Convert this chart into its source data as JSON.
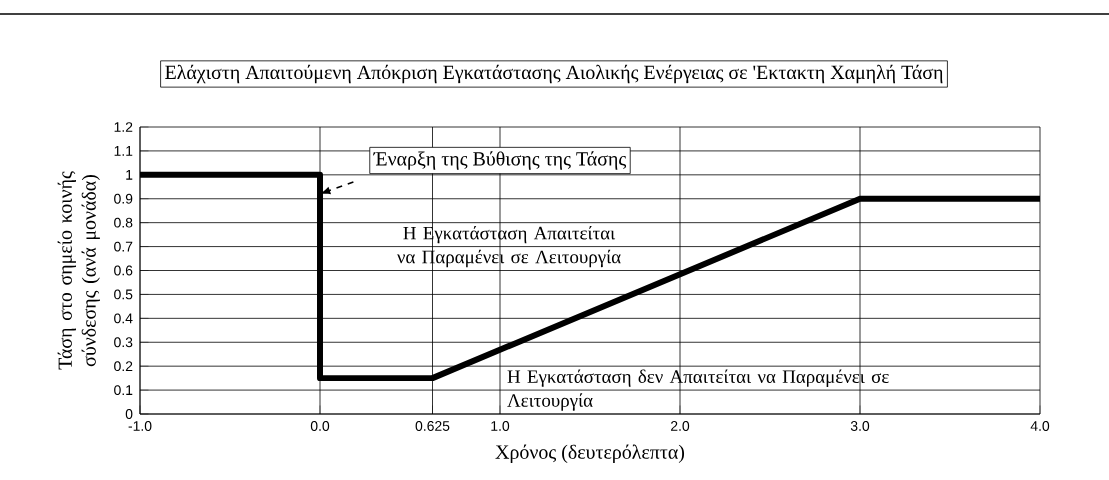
{
  "chart_data": {
    "type": "line",
    "title": "Ελάχιστη Απαιτούμενη Απόκριση Εγκατάστασης Αιολικής Ενέργειας σε 'Εκτακτη Χαμηλή Τάση",
    "xlabel": "Χρόνος (δευτερόλεπτα)",
    "ylabel": "Τάση στο σημείο κοινής σύνδεσης (ανά μονάδα)",
    "x": [
      -1,
      0,
      0,
      0.625,
      3,
      4
    ],
    "series": [
      {
        "color": "#000000",
        "values": [
          1,
          1,
          0.15,
          0.15,
          0.9,
          0.9
        ]
      }
    ],
    "xlim": [
      -1,
      4
    ],
    "ylim": [
      0,
      1.2
    ],
    "xticks": [
      {
        "value": -1,
        "label": "-1.0"
      },
      {
        "value": 0,
        "label": "0.0"
      },
      0.625,
      {
        "value": 1,
        "label": "1.0"
      },
      {
        "value": 2,
        "label": "2.0"
      },
      {
        "value": 3,
        "label": "3.0"
      },
      {
        "value": 4,
        "label": "4.0"
      }
    ],
    "yticks": [
      0,
      0.1,
      0.2,
      0.3,
      0.4,
      0.5,
      0.6,
      0.7,
      0.8,
      0.9,
      1,
      1.1,
      1.2
    ],
    "grid": true,
    "marker": "none",
    "line_style": "solid",
    "annotations": [
      {
        "text": "Έναρξη της Βύθισης της Τάσης",
        "x": 0,
        "y": 0.92
      },
      "Η Εγκατάσταση Απαιτείται να Παραμένει σε Λειτουργία",
      "Η Εγκατάσταση δεν Απαιτείται να Παραμένει σε Λειτουργία"
    ]
  }
}
